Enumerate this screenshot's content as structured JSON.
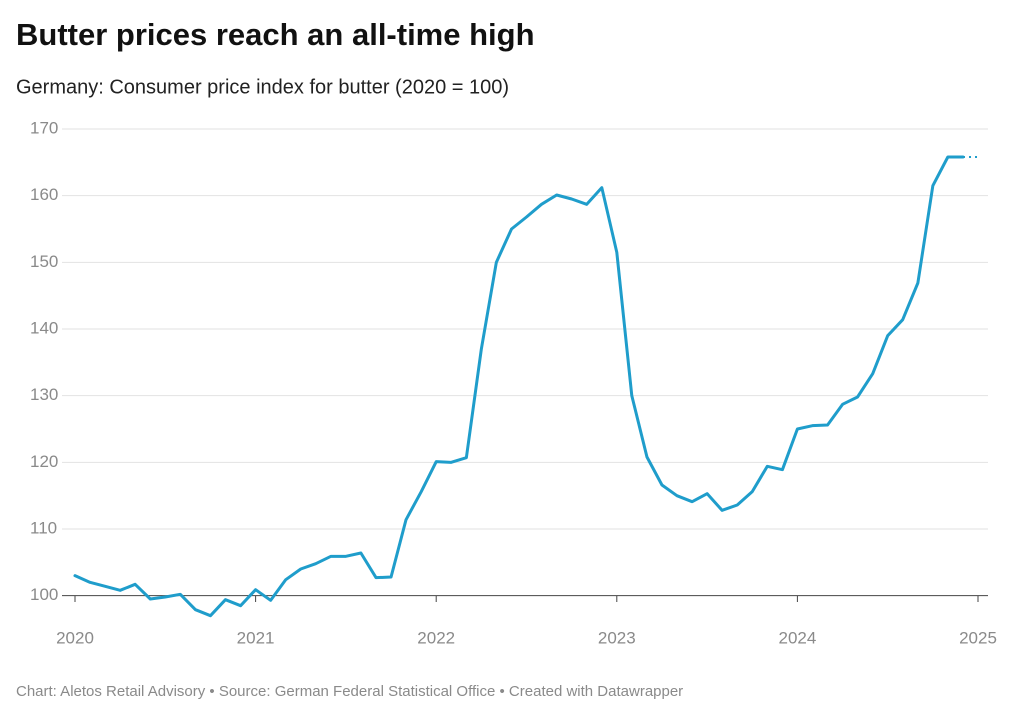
{
  "chart_data": {
    "type": "line",
    "title": "Butter prices reach an all-time high",
    "subtitle": "Germany: Consumer price index for butter (2020 = 100)",
    "source": "Chart: Aletos Retail Advisory • Source: German Federal Statistical Office • Created with Datawrapper",
    "x": [
      2020,
      2020.083,
      2020.167,
      2020.25,
      2020.333,
      2020.417,
      2020.5,
      2020.583,
      2020.667,
      2020.75,
      2020.833,
      2020.917,
      2021,
      2021.083,
      2021.167,
      2021.25,
      2021.333,
      2021.417,
      2021.5,
      2021.583,
      2021.667,
      2021.75,
      2021.833,
      2021.917,
      2022,
      2022.083,
      2022.167,
      2022.25,
      2022.333,
      2022.417,
      2022.5,
      2022.583,
      2022.667,
      2022.75,
      2022.833,
      2022.917,
      2023,
      2023.083,
      2023.167,
      2023.25,
      2023.333,
      2023.417,
      2023.5,
      2023.583,
      2023.667,
      2023.75,
      2023.833,
      2023.917,
      2024,
      2024.083,
      2024.167,
      2024.25,
      2024.333,
      2024.417,
      2024.5,
      2024.583,
      2024.667,
      2024.75,
      2024.833,
      2024.917,
      2025
    ],
    "values": [
      103,
      102,
      101.4,
      100.8,
      101.7,
      99.5,
      99.8,
      100.2,
      97.9,
      97.0,
      99.4,
      98.5,
      100.9,
      99.3,
      102.4,
      104,
      104.8,
      105.9,
      105.9,
      106.4,
      102.7,
      102.8,
      111.4,
      115.6,
      120.1,
      120,
      120.7,
      137,
      150,
      155,
      156.8,
      158.7,
      160.1,
      159.5,
      158.7,
      161.2,
      151.5,
      130,
      120.8,
      116.6,
      115,
      114.1,
      115.3,
      112.8,
      113.6,
      115.6,
      119.4,
      118.9,
      125,
      125.5,
      125.6,
      128.7,
      129.8,
      133.3,
      139,
      141.4,
      146.9,
      161.5,
      165.8,
      165.8,
      165.8
    ],
    "dashed_last_segment": true,
    "color": "#1f9dcb",
    "xlim": [
      2020,
      2025
    ],
    "xticks": [
      2020,
      2021,
      2022,
      2023,
      2024,
      2025
    ],
    "ylim": [
      96.5,
      170
    ],
    "yticks": [
      100,
      110,
      120,
      130,
      140,
      150,
      160,
      170
    ],
    "grid": true
  }
}
